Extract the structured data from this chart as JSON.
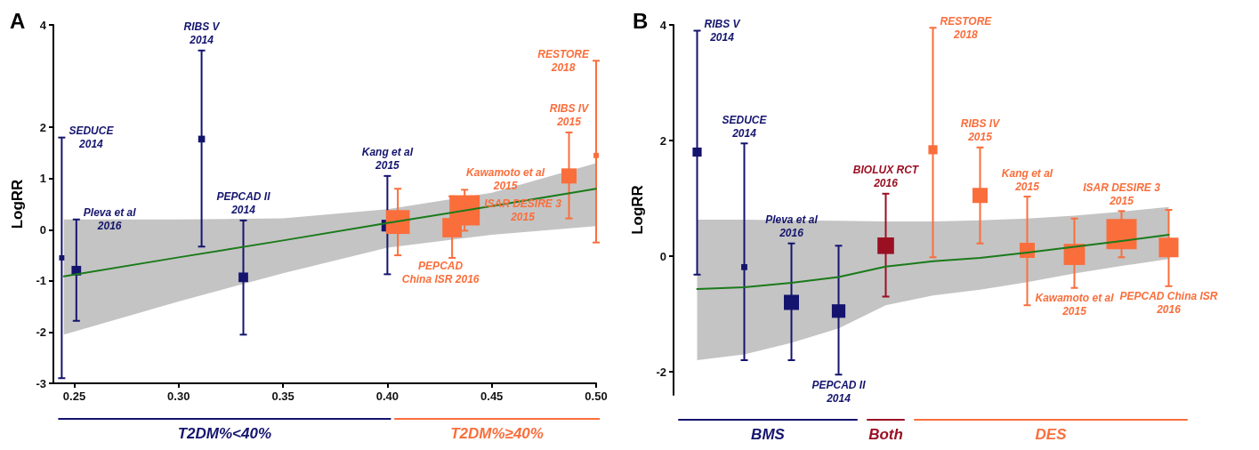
{
  "chart_data": [
    {
      "type": "bubble",
      "title": "A",
      "ylabel": "LogRR",
      "marker": "square",
      "legend": "bottom",
      "grid": false,
      "xlim": [
        0.24,
        0.5
      ],
      "xticks": [
        0.25,
        {
          "value": 0.3,
          "label": "0.30"
        },
        0.35,
        {
          "value": 0.4,
          "label": "0.40"
        },
        0.45,
        {
          "value": 0.5,
          "label": "0.50"
        }
      ],
      "ylim": [
        -3,
        4
      ],
      "yticks": [
        -3,
        -2,
        -1,
        0,
        1,
        2,
        4
      ],
      "series": [
        {
          "name": "T2DM%<40%",
          "color": "#14146e",
          "x": [
            0.244,
            0.251,
            0.311,
            0.331,
            0.4
          ],
          "values": [
            -0.55,
            -0.8,
            1.77,
            -0.93,
            0.08
          ],
          "sizes": [
            0.03,
            0.1,
            0.05,
            0.1,
            0.15
          ],
          "errors": [
            [
              -2.9,
              1.8
            ],
            [
              -1.78,
              0.2
            ],
            [
              -0.33,
              3.5
            ],
            [
              -2.05,
              0.18
            ],
            [
              -0.87,
              1.05
            ]
          ]
        },
        {
          "name": "T2DM%≥40%",
          "color": "#fa6e3c",
          "x": [
            0.405,
            0.431,
            0.437,
            0.487,
            0.5
          ],
          "values": [
            0.15,
            0.04,
            0.38,
            1.05,
            1.45
          ],
          "sizes": [
            0.62,
            0.41,
            1,
            0.25,
            0.03
          ],
          "errors": [
            [
              -0.5,
              0.8
            ],
            [
              -0.55,
              0.65
            ],
            [
              -0.02,
              0.78
            ],
            [
              0.22,
              1.9
            ],
            [
              -0.25,
              3.3
            ]
          ]
        },
        {
          "type": "line",
          "marker": "none",
          "color": "#1a7a1a",
          "x": [
            0.245,
            0.3,
            0.35,
            0.4,
            0.45,
            0.5
          ],
          "values": [
            -0.91,
            -0.54,
            -0.21,
            0.13,
            0.46,
            0.8
          ],
          "lower": [
            -2.05,
            -1.4,
            -0.85,
            -0.35,
            -0.1,
            0.07
          ],
          "upper": [
            0.2,
            0.2,
            0.22,
            0.4,
            0.72,
            1.3
          ]
        }
      ],
      "annotations": [
        "SEDUCE\n2014",
        "Pleva et al\n2016",
        "RIBS V\n2014",
        "PEPCAD II\n2014",
        "Kang et al\n2015",
        "PEPCAD\nChina ISR 2016",
        "Kawamoto et al\n2015",
        "ISAR DESIRE 3\n2015",
        "RIBS IV\n2015",
        "RESTORE\n2018"
      ]
    },
    {
      "type": "bubble",
      "title": "B",
      "ylabel": "LogRR",
      "marker": "square",
      "legend": "bottom",
      "grid": false,
      "tick_labels": "y",
      "categories": [
        null,
        null,
        null,
        null,
        null,
        null,
        null,
        null,
        null,
        null,
        null
      ],
      "ylim": [
        -2.4,
        4
      ],
      "yticks": [
        -2,
        0,
        2,
        4
      ],
      "series": [
        {
          "name": "BMS",
          "color": "#14146e",
          "values": [
            1.8,
            -0.19,
            -0.8,
            -0.95,
            null,
            null,
            null,
            null,
            null,
            null,
            null
          ],
          "sizes": [
            0.09,
            0.04,
            0.25,
            0.2,
            null,
            null,
            null,
            null,
            null,
            null,
            null
          ],
          "errors": [
            [
              -0.32,
              3.9
            ],
            [
              -1.8,
              1.95
            ],
            [
              -1.8,
              0.22
            ],
            [
              -2.05,
              0.18
            ],
            null,
            null,
            null,
            null,
            null,
            null,
            null
          ]
        },
        {
          "name": "Both",
          "color": "#9b0f23",
          "values": [
            null,
            null,
            null,
            null,
            0.18,
            null,
            null,
            null,
            null,
            null,
            null
          ],
          "sizes": [
            null,
            null,
            null,
            null,
            0.3,
            null,
            null,
            null,
            null,
            null,
            null
          ],
          "errors": [
            null,
            null,
            null,
            null,
            [
              -0.7,
              1.08
            ],
            null,
            null,
            null,
            null,
            null,
            null
          ]
        },
        {
          "name": "DES",
          "color": "#fa6e3c",
          "values": [
            null,
            null,
            null,
            null,
            null,
            1.84,
            1.05,
            0.1,
            0.03,
            0.38,
            0.15
          ],
          "sizes": [
            null,
            null,
            null,
            null,
            null,
            0.09,
            0.25,
            0.25,
            0.49,
            1,
            0.42
          ],
          "errors": [
            null,
            null,
            null,
            null,
            null,
            [
              -0.02,
              3.95
            ],
            [
              0.22,
              1.88
            ],
            [
              -0.85,
              1.03
            ],
            [
              -0.55,
              0.65
            ],
            [
              -0.02,
              0.78
            ],
            [
              -0.52,
              0.8
            ]
          ]
        },
        {
          "type": "line",
          "marker": "none",
          "color": "#1a7a1a",
          "values": [
            -0.57,
            -0.54,
            -0.46,
            -0.36,
            -0.18,
            -0.09,
            -0.03,
            0.06,
            0.16,
            0.26,
            0.37
          ],
          "lower": [
            -1.8,
            -1.7,
            -1.5,
            -1.25,
            -0.85,
            -0.68,
            -0.58,
            -0.45,
            -0.3,
            -0.17,
            -0.05
          ],
          "upper": [
            0.63,
            0.63,
            0.62,
            0.61,
            0.6,
            0.6,
            0.62,
            0.65,
            0.7,
            0.77,
            0.85
          ]
        }
      ],
      "annotations": [
        "RIBS V\n2014",
        "SEDUCE\n2014",
        "Pleva et al\n2016",
        "PEPCAD II\n2014",
        "BIOLUX RCT\n2016",
        "RESTORE\n2018",
        "RIBS IV\n2015",
        "Kang et al\n2015",
        "Kawamoto et al\n2015",
        "ISAR DESIRE 3\n2015",
        "PEPCAD China ISR\n2016"
      ]
    }
  ]
}
